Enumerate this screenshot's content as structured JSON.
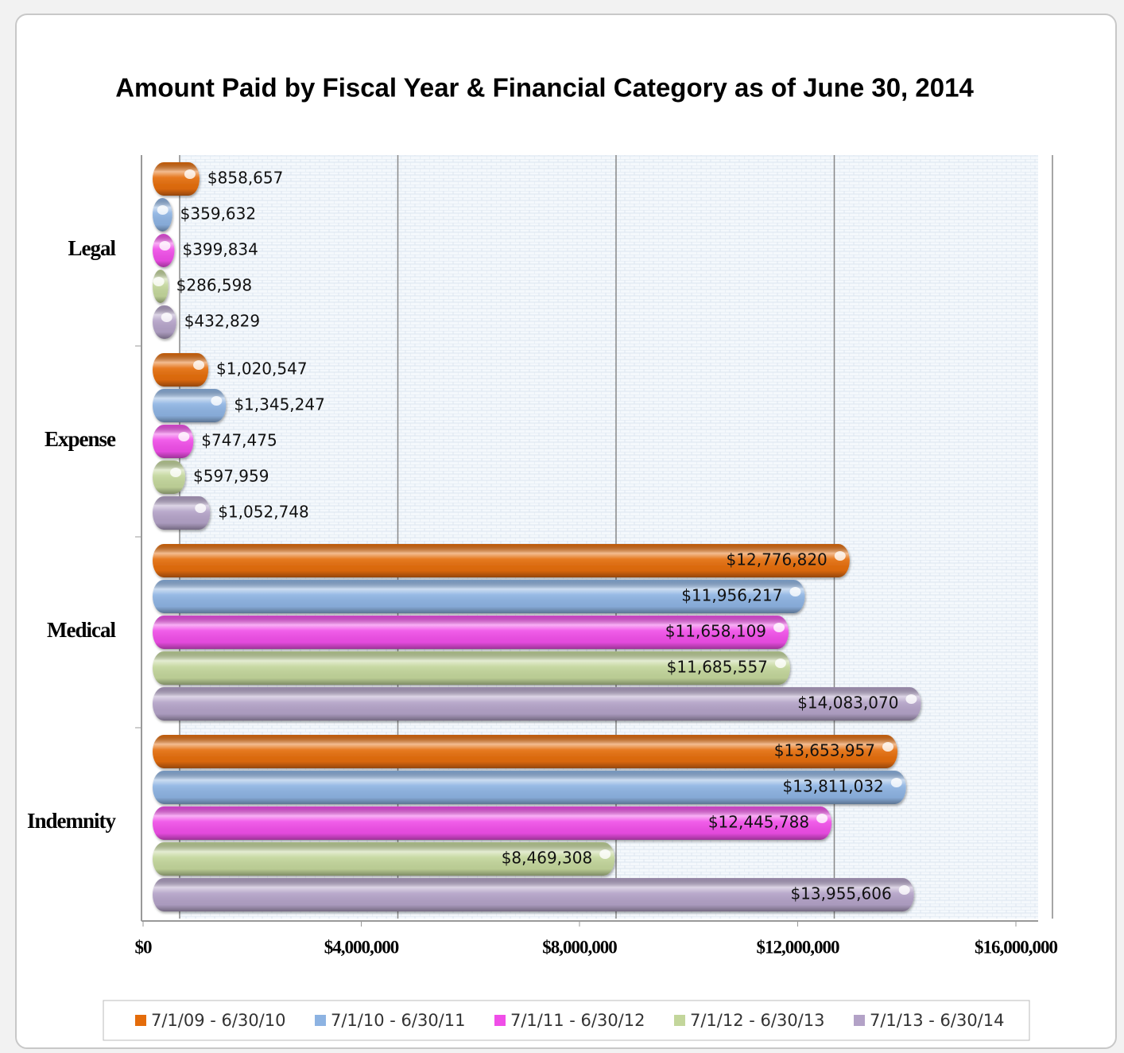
{
  "chart_data": {
    "type": "bar",
    "orientation": "horizontal",
    "title": "Amount Paid by Fiscal Year & Financial Category as of June 30, 2014",
    "categories": [
      "Legal",
      "Expense",
      "Medical",
      "Indemnity"
    ],
    "series": [
      {
        "name": "7/1/09 - 6/30/10",
        "color": "#e46c0a",
        "values": [
          858657,
          1020547,
          12776820,
          13653957
        ],
        "value_labels": [
          "$858,657",
          "$1,020,547",
          "$12,776,820",
          "$13,653,957"
        ]
      },
      {
        "name": "7/1/10 - 6/30/11",
        "color": "#8db3e2",
        "values": [
          359632,
          1345247,
          11956217,
          13811032
        ],
        "value_labels": [
          "$359,632",
          "$1,345,247",
          "$11,956,217",
          "$13,811,032"
        ]
      },
      {
        "name": "7/1/11 - 6/30/12",
        "color": "#f04ee8",
        "values": [
          399834,
          747475,
          11658109,
          12445788
        ],
        "value_labels": [
          "$399,834",
          "$747,475",
          "$11,658,109",
          "$12,445,788"
        ]
      },
      {
        "name": "7/1/12 - 6/30/13",
        "color": "#c3d69b",
        "values": [
          286598,
          597959,
          11685557,
          8469308
        ],
        "value_labels": [
          "$286,598",
          "$597,959",
          "$11,685,557",
          "$8,469,308"
        ]
      },
      {
        "name": "7/1/13 - 6/30/14",
        "color": "#b3a2c7",
        "values": [
          432829,
          1052748,
          14083070,
          13955606
        ],
        "value_labels": [
          "$432,829",
          "$1,052,748",
          "$14,083,070",
          "$13,955,606"
        ]
      }
    ],
    "xlim": [
      0,
      16000000
    ],
    "xticks": [
      {
        "value": 0,
        "label": "$0"
      },
      {
        "value": 4000000,
        "label": "$4,000,000"
      },
      {
        "value": 8000000,
        "label": "$8,000,000"
      },
      {
        "value": 12000000,
        "label": "$12,000,000"
      },
      {
        "value": 16000000,
        "label": "$16,000,000"
      }
    ],
    "grid": true,
    "legend": "bottom"
  }
}
